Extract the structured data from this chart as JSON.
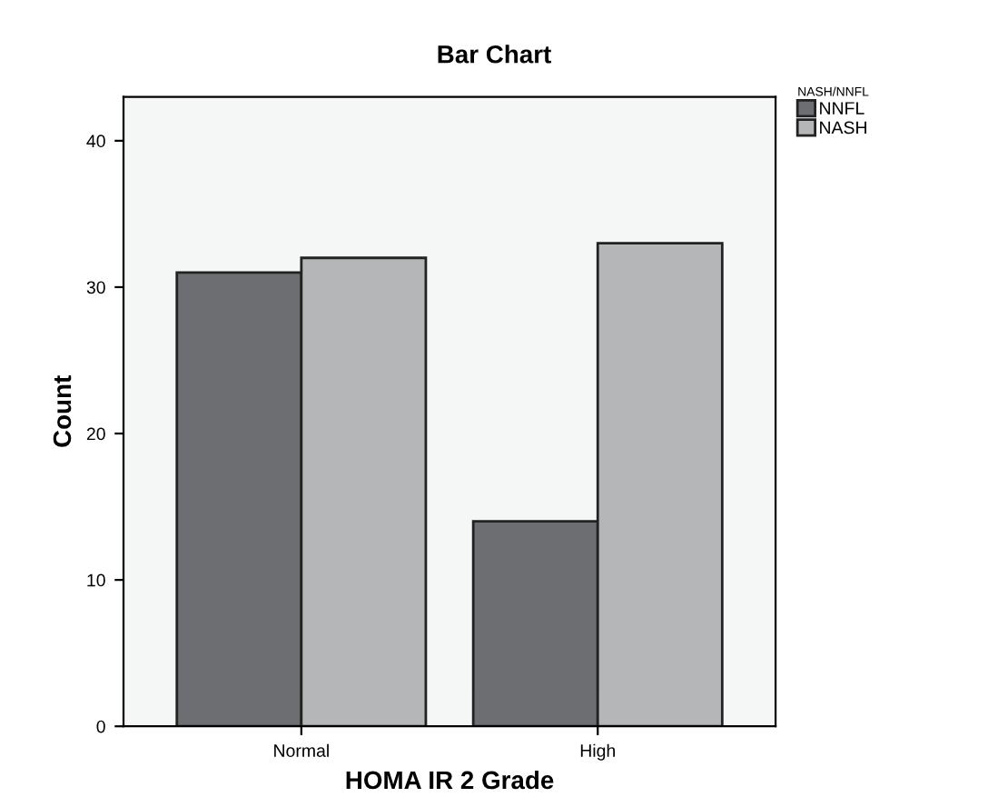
{
  "chart_data": {
    "type": "bar",
    "title": "Bar Chart",
    "xlabel": "HOMA IR 2 Grade",
    "ylabel": "Count",
    "legend_title": "NASH/NNFL",
    "categories": [
      "Normal",
      "High"
    ],
    "series": [
      {
        "name": "NNFL",
        "color": "#6d6e72",
        "values": [
          31,
          14
        ]
      },
      {
        "name": "NASH",
        "color": "#b5b6b8",
        "values": [
          32,
          33
        ]
      }
    ],
    "ylim": [
      0,
      43
    ],
    "yticks": [
      0,
      10,
      20,
      30,
      40
    ],
    "grid": false,
    "legend": "top right"
  }
}
